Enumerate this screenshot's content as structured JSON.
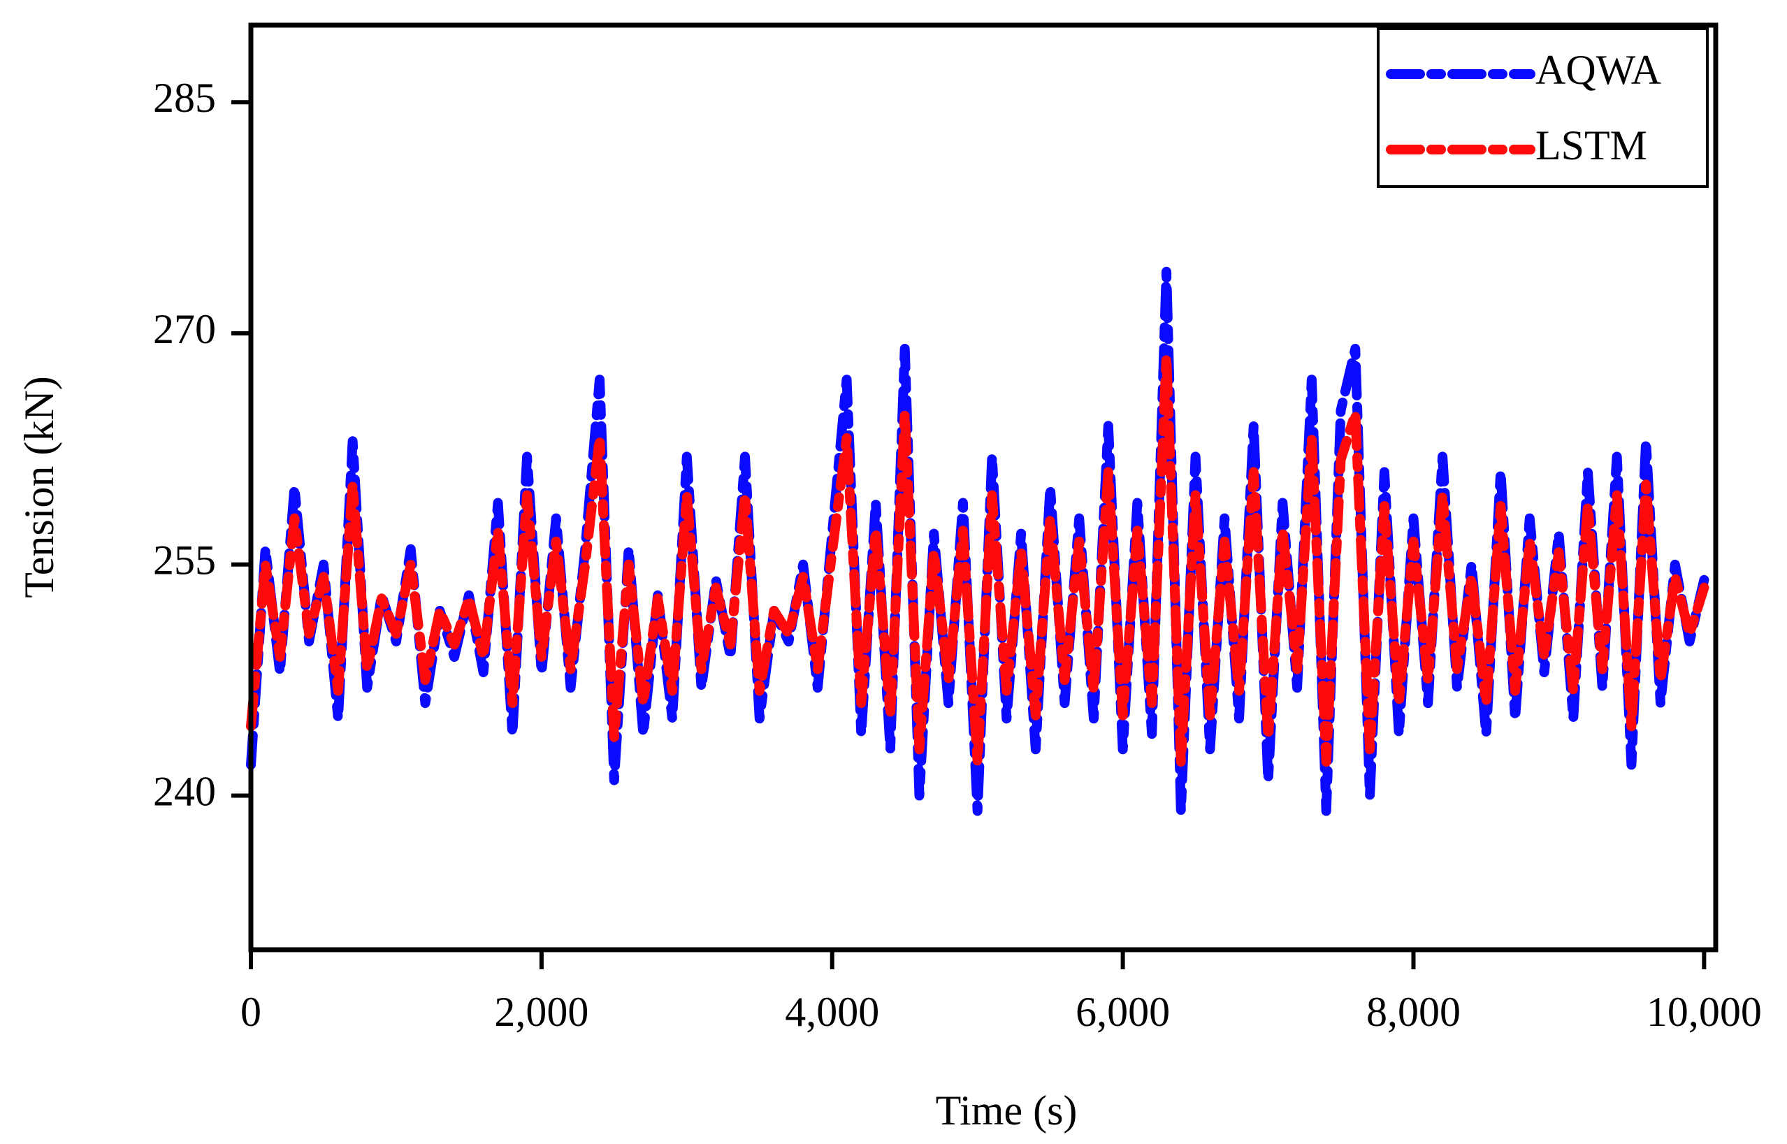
{
  "chart_data": {
    "type": "line",
    "x_label": "Time (s)",
    "y_label": "Tension (kN)",
    "x": [
      0,
      100,
      200,
      300,
      400,
      500,
      600,
      700,
      800,
      900,
      1000,
      1100,
      1200,
      1300,
      1400,
      1500,
      1600,
      1700,
      1800,
      1900,
      2000,
      2100,
      2200,
      2300,
      2400,
      2500,
      2600,
      2700,
      2800,
      2900,
      3000,
      3100,
      3200,
      3300,
      3400,
      3500,
      3600,
      3700,
      3800,
      3900,
      4000,
      4100,
      4200,
      4300,
      4400,
      4500,
      4600,
      4700,
      4800,
      4900,
      5000,
      5100,
      5200,
      5300,
      5400,
      5500,
      5600,
      5700,
      5800,
      5900,
      6000,
      6100,
      6200,
      6300,
      6400,
      6500,
      6600,
      6700,
      6800,
      6900,
      7000,
      7100,
      7200,
      7300,
      7400,
      7500,
      7600,
      7700,
      7800,
      7900,
      8000,
      8100,
      8200,
      8300,
      8400,
      8500,
      8600,
      8700,
      8800,
      8900,
      9000,
      9100,
      9200,
      9300,
      9400,
      9500,
      9600,
      9700,
      9800,
      9900,
      10000
    ],
    "series": [
      {
        "name": "AQWA",
        "color": "#0a0aff",
        "values": [
          242,
          256,
          248,
          260,
          250,
          255,
          245,
          263,
          247,
          253,
          250,
          256,
          246,
          252,
          249,
          253,
          248,
          259,
          244,
          262,
          248,
          258,
          247,
          256,
          267,
          241,
          256,
          244,
          253,
          245,
          262,
          247,
          254,
          249,
          262,
          245,
          252,
          250,
          255,
          247,
          257,
          267,
          244,
          259,
          243,
          269,
          240,
          257,
          246,
          259,
          239,
          262,
          245,
          257,
          243,
          260,
          246,
          258,
          245,
          264,
          243,
          259,
          244,
          274,
          239,
          262,
          243,
          258,
          245,
          264,
          241,
          259,
          247,
          267,
          239,
          265,
          269,
          240,
          261,
          244,
          258,
          246,
          262,
          247,
          255,
          244,
          261,
          245,
          258,
          248,
          257,
          245,
          261,
          247,
          262,
          242,
          263,
          246,
          255,
          250,
          254
        ]
      },
      {
        "name": "LSTM",
        "color": "#ff0a0a",
        "values": [
          244.5,
          255,
          249,
          258,
          250.5,
          254.2,
          246.8,
          260.2,
          248.2,
          252.8,
          250.5,
          255,
          247.5,
          252,
          249.8,
          252.8,
          249,
          257.2,
          246,
          259.5,
          249,
          256.5,
          248.2,
          255,
          263.2,
          243.8,
          255,
          246,
          252.8,
          246.8,
          259.5,
          248.2,
          253.5,
          249.8,
          259.5,
          246.8,
          252,
          250.5,
          254.2,
          248.2,
          255.8,
          263.2,
          246,
          257.2,
          245.2,
          264.8,
          243,
          255.8,
          247.5,
          257.2,
          242.2,
          259.5,
          246.8,
          255.8,
          245.2,
          258,
          247.5,
          256.5,
          246.8,
          261,
          245.2,
          257.2,
          246,
          268.5,
          242.2,
          259.5,
          245.2,
          256.5,
          246.8,
          261,
          243.8,
          257.2,
          248.2,
          263.2,
          242.2,
          261.8,
          264.8,
          243,
          258.8,
          246,
          256.5,
          247.5,
          259.5,
          248.2,
          254.2,
          246,
          258.8,
          246.8,
          256.5,
          249,
          255.8,
          246.8,
          258.8,
          248.2,
          259.5,
          244.5,
          260.2,
          247.5,
          254.2,
          250.5,
          253.5
        ]
      }
    ],
    "xlim": [
      0,
      10080
    ],
    "ylim": [
      230,
      290
    ],
    "xticks": [
      0,
      {
        "value": 2000,
        "label": "2,000"
      },
      {
        "value": 4000,
        "label": "4,000"
      },
      {
        "value": 6000,
        "label": "6,000"
      },
      {
        "value": 8000,
        "label": "8,000"
      },
      {
        "value": 10000,
        "label": "10,000"
      }
    ],
    "yticks": [
      240,
      255,
      270,
      285
    ],
    "legend": "top-right",
    "grid": false
  }
}
